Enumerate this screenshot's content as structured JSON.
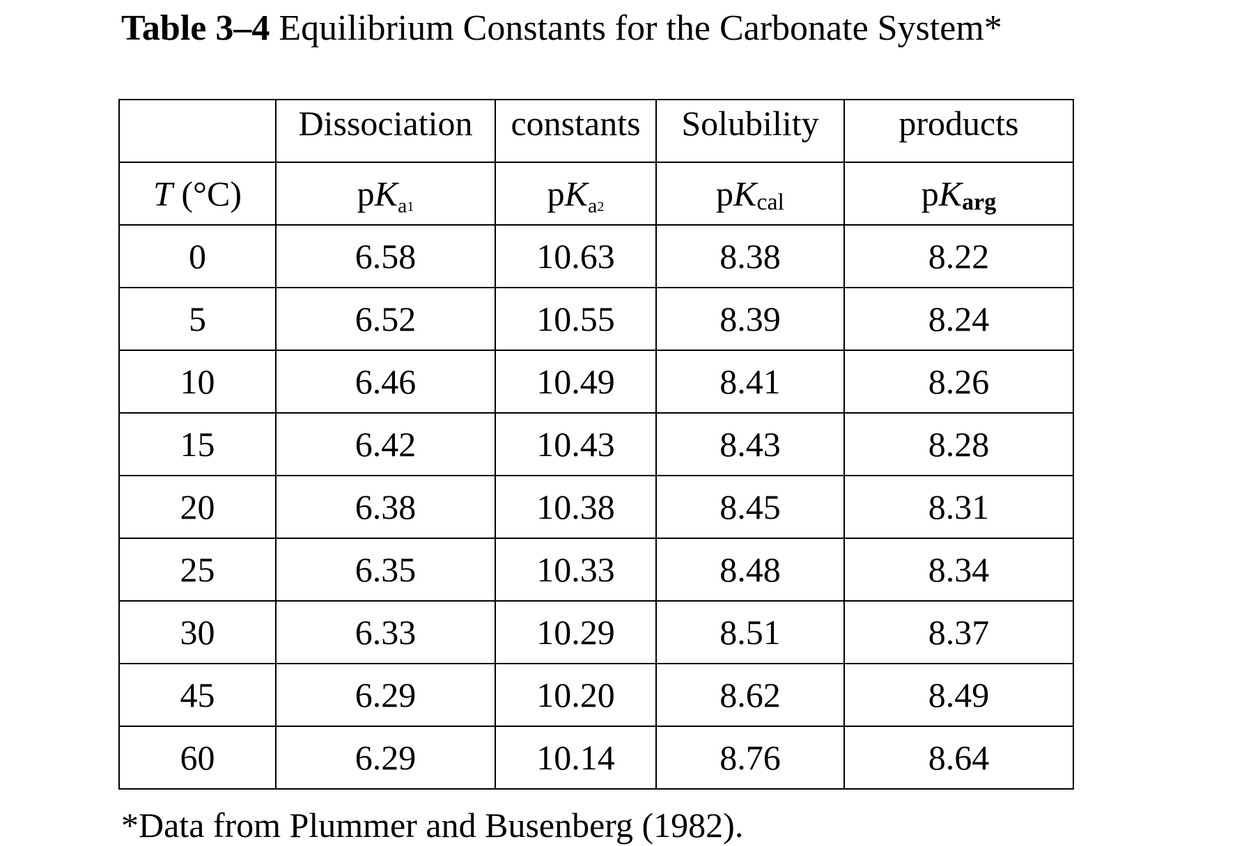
{
  "title": {
    "label": "Table 3–4",
    "text": "Equilibrium Constants for the Carbonate System*"
  },
  "header_groups": [
    "Dissociation",
    "constants",
    "Solubility",
    "products"
  ],
  "column_headers": {
    "t": {
      "var": "T",
      "unit": "(°C)"
    },
    "pka1": {
      "prefix": "p",
      "symbol": "K",
      "sub": "a",
      "subsub": "1"
    },
    "pka2": {
      "prefix": "p",
      "symbol": "K",
      "sub": "a",
      "subsub": "2"
    },
    "pkcal": {
      "prefix": "p",
      "symbol": "K",
      "sub": "cal"
    },
    "pkarg": {
      "prefix": "p",
      "symbol": "K",
      "sub": "arg"
    }
  },
  "rows": [
    [
      "0",
      "6.58",
      "10.63",
      "8.38",
      "8.22"
    ],
    [
      "5",
      "6.52",
      "10.55",
      "8.39",
      "8.24"
    ],
    [
      "10",
      "6.46",
      "10.49",
      "8.41",
      "8.26"
    ],
    [
      "15",
      "6.42",
      "10.43",
      "8.43",
      "8.28"
    ],
    [
      "20",
      "6.38",
      "10.38",
      "8.45",
      "8.31"
    ],
    [
      "25",
      "6.35",
      "10.33",
      "8.48",
      "8.34"
    ],
    [
      "30",
      "6.33",
      "10.29",
      "8.51",
      "8.37"
    ],
    [
      "45",
      "6.29",
      "10.20",
      "8.62",
      "8.49"
    ],
    [
      "60",
      "6.29",
      "10.14",
      "8.76",
      "8.64"
    ]
  ],
  "footnote": "*Data from Plummer and Busenberg (1982)."
}
